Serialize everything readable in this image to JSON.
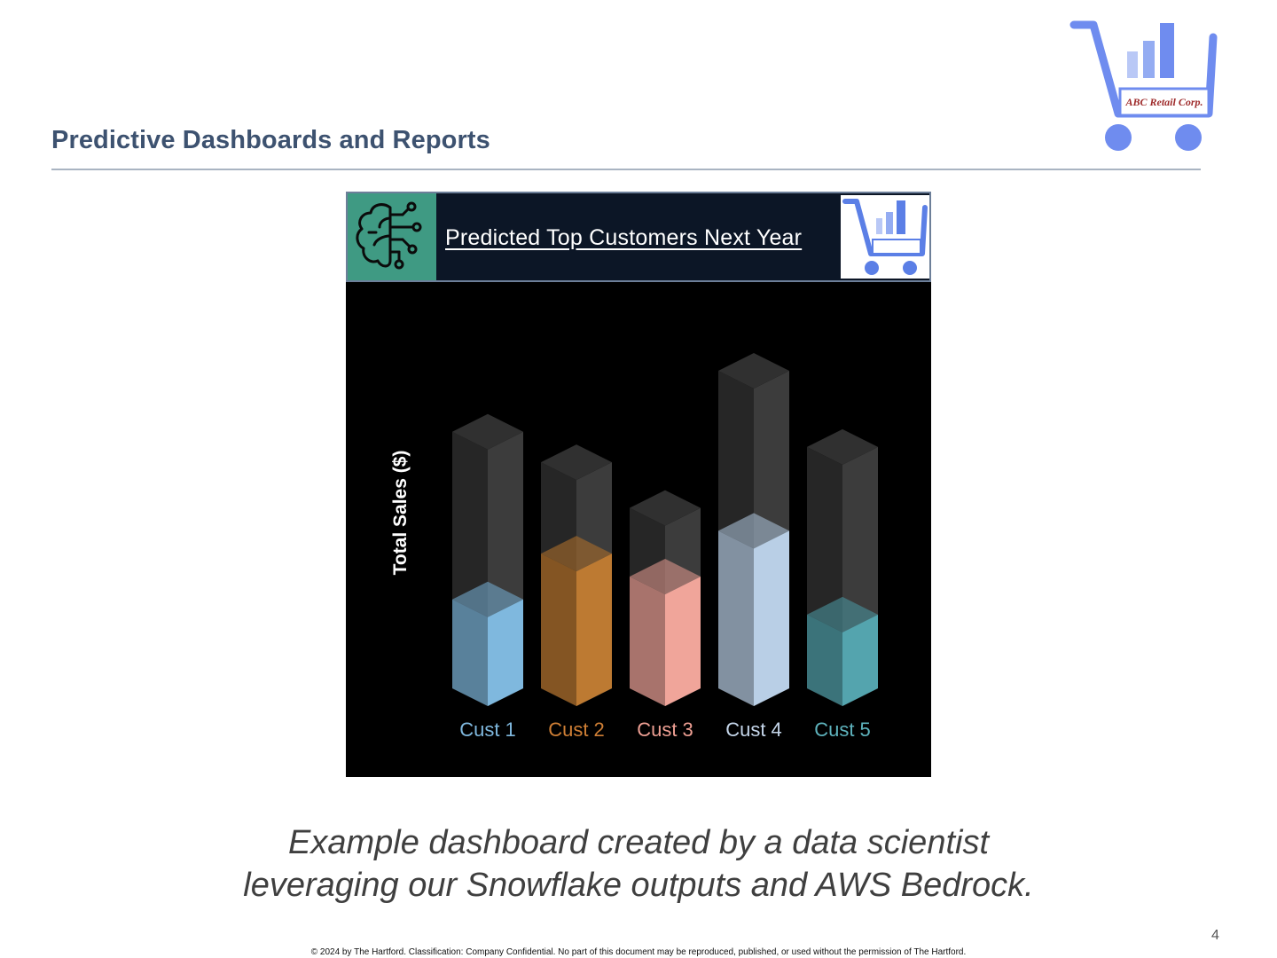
{
  "slide": {
    "title": "Predictive Dashboards and Reports",
    "page_number": "4",
    "caption_line1": "Example dashboard created by a data scientist",
    "caption_line2": "leveraging our Snowflake outputs and AWS Bedrock.",
    "footer": "© 2024 by The Hartford. Classification: Company Confidential. No part of this document may be reproduced, published, or used without the permission of The Hartford."
  },
  "logo": {
    "text": "ABC Retail Corp.",
    "icon": "shopping-cart-chart-icon",
    "color": "#6f8cef",
    "text_color": "#9e2a2a"
  },
  "dashboard": {
    "title": "Predicted Top Customers Next Year",
    "ai_icon": "ai-brain-circuit-icon",
    "mini_logo_icon": "shopping-cart-chart-icon",
    "header_bg": "#0c1626",
    "ai_box_color": "#3f9a83"
  },
  "chart_data": {
    "type": "bar",
    "style": "3d-cylinder-fill",
    "title": "Predicted Top Customers Next Year",
    "xlabel": "",
    "ylabel": "Total Sales ($)",
    "categories": [
      "Cust 1",
      "Cust 2",
      "Cust 3",
      "Cust 4",
      "Cust 5"
    ],
    "series": [
      {
        "values": [
          14,
          20,
          17,
          23,
          12
        ]
      }
    ],
    "capacity": [
      36,
      32,
      26,
      44,
      34
    ],
    "ylim": [
      0,
      44
    ],
    "grid": false,
    "legend": "none",
    "colors": [
      "#7fb8de",
      "#bd7a32",
      "#f0a59a",
      "#b9cfe6",
      "#54a4ae"
    ],
    "label_colors": [
      "#7fb8de",
      "#cf7f35",
      "#ee9f93",
      "#c5d6ea",
      "#5eb3bd"
    ]
  }
}
